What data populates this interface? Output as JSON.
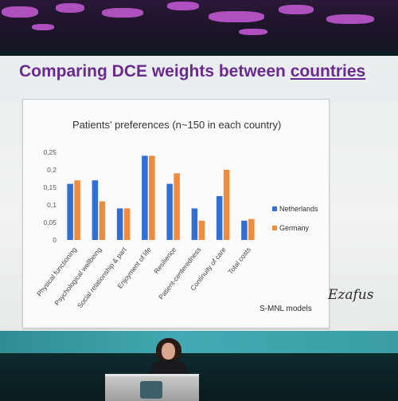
{
  "slide": {
    "title_main": "Comparing DCE weights between ",
    "title_highlight": "countries",
    "footer_label": "S-MNL models",
    "logo_text": "Ezafus",
    "accent_color": "#6a2a8e"
  },
  "chart_data": {
    "type": "bar",
    "title": "Patients' preferences (n~150 in each country)",
    "categories": [
      "Physical functioning",
      "Psychological wellbeing",
      "Social relationship & part",
      "Enjoyment of life",
      "Resilience",
      "Patient-centeredness",
      "Continuity of care",
      "Total costs"
    ],
    "series": [
      {
        "name": "Netherlands",
        "color": "#2f6fd6",
        "values": [
          0.16,
          0.17,
          0.09,
          0.24,
          0.16,
          0.09,
          0.125,
          0.055
        ]
      },
      {
        "name": "Germany",
        "color": "#f08a3c",
        "values": [
          0.17,
          0.11,
          0.09,
          0.24,
          0.19,
          0.055,
          0.2,
          0.06
        ]
      }
    ],
    "y_ticks": [
      "0",
      "0,05",
      "0,1",
      "0,15",
      "0,2",
      "0,25"
    ],
    "ylim": [
      0,
      0.25
    ],
    "grid": false,
    "legend_position": "right"
  }
}
